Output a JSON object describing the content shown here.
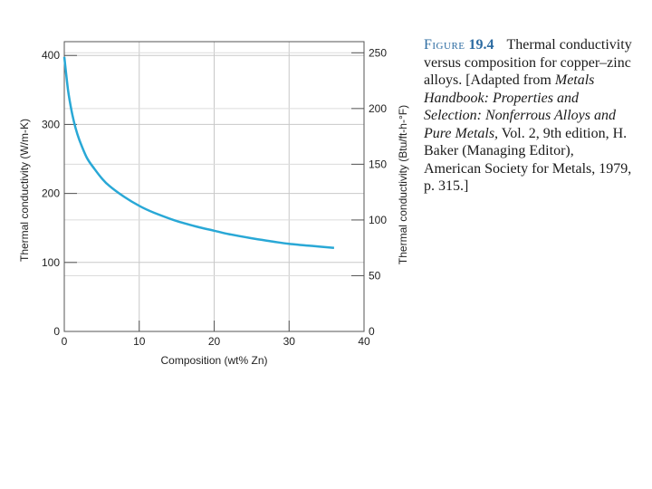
{
  "caption": {
    "figure_word": "Figure",
    "figure_number": "19.4",
    "text_a": "Thermal conductivity versus composition for copper–zinc alloys. [Adapted from ",
    "italic_a": "Metals Handbook: Properties and Selection: Nonferrous Alloys and Pure Metals,",
    "text_b": " Vol. 2, 9th edition, H. Baker (Managing Editor), American Society for Metals, 1979, p. 315.]"
  },
  "chart_data": {
    "type": "line",
    "title": "",
    "xlabel": "Composition (wt% Zn)",
    "ylabel": "Thermal conductivity (W/m-K)",
    "y2label": "Thermal conductivity (Btu/ft-h-°F)",
    "xlim": [
      0,
      40
    ],
    "ylim": [
      0,
      420
    ],
    "y2lim": [
      0,
      260
    ],
    "x_ticks": [
      0,
      10,
      20,
      30,
      40
    ],
    "y_ticks": [
      0,
      100,
      200,
      300,
      400
    ],
    "y2_ticks": [
      0,
      50,
      100,
      150,
      200,
      250
    ],
    "grid": true,
    "line_color": "#29a8d6",
    "series": [
      {
        "x": [
          0,
          0.5,
          1,
          1.5,
          2,
          3,
          4,
          5,
          6,
          8,
          10,
          12,
          15,
          18,
          20,
          22,
          25,
          28,
          30,
          33,
          36
        ],
        "y": [
          398,
          350,
          318,
          295,
          278,
          252,
          236,
          222,
          211,
          195,
          182,
          172,
          160,
          151,
          146,
          141,
          135,
          130,
          127,
          124,
          121
        ]
      }
    ]
  }
}
